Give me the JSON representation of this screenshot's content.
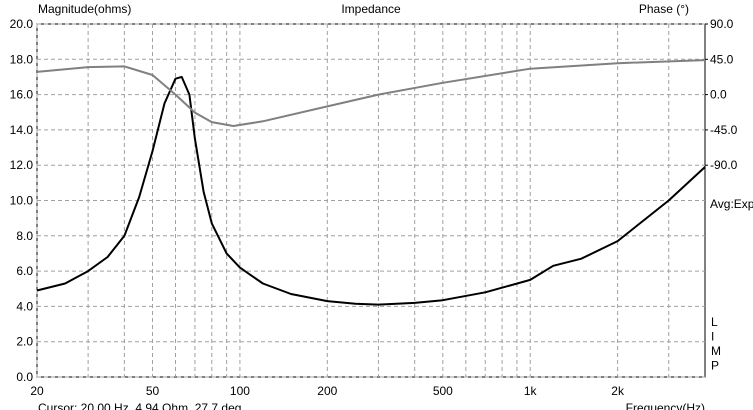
{
  "chart_data": {
    "type": "line",
    "title": "Impedance",
    "y_label": "Magnitude(ohms)",
    "y2_label": "Phase (°)",
    "side_note": "Avg:Exp",
    "side_letters": [
      "L",
      "I",
      "M",
      "P"
    ],
    "footer_left": "Cursor: 20.00 Hz, 4.94 Ohm, 27.7 deg",
    "footer_right": "Frequency(Hz)",
    "xscale": "log",
    "xlim": [
      20,
      4000
    ],
    "xticks": [
      20,
      50,
      100,
      200,
      500,
      {
        "value": 1000,
        "label": "1k"
      },
      {
        "value": 2000,
        "label": "2k"
      }
    ],
    "ylim": [
      0,
      20
    ],
    "yticks": [
      {
        "value": 0,
        "label": "0.0"
      },
      {
        "value": 2,
        "label": "2.0"
      },
      {
        "value": 4,
        "label": "4.0"
      },
      {
        "value": 6,
        "label": "6.0"
      },
      {
        "value": 8,
        "label": "8.0"
      },
      {
        "value": 10,
        "label": "10.0"
      },
      {
        "value": 12,
        "label": "12.0"
      },
      {
        "value": 14,
        "label": "14.0"
      },
      {
        "value": 16,
        "label": "16.0"
      },
      {
        "value": 18,
        "label": "18.0"
      },
      {
        "value": 20,
        "label": "20.0"
      }
    ],
    "y2lim": [
      -360,
      90
    ],
    "y2ticks": [
      {
        "value": 90,
        "label": "90.0"
      },
      {
        "value": 45,
        "label": "45.0"
      },
      {
        "value": 0,
        "label": "0.0"
      },
      {
        "value": -45,
        "label": "-45.0"
      },
      {
        "value": -90,
        "label": "-90.0"
      }
    ],
    "grid": true,
    "series": [
      {
        "name": "Magnitude",
        "color": "#000000",
        "axis": "y",
        "x": [
          20,
          25,
          30,
          35,
          40,
          45,
          50,
          55,
          60,
          63,
          67,
          70,
          75,
          80,
          90,
          100,
          120,
          150,
          200,
          250,
          300,
          400,
          500,
          700,
          1000,
          1200,
          1500,
          2000,
          3000,
          4000
        ],
        "values": [
          4.9,
          5.3,
          6.0,
          6.8,
          8.0,
          10.2,
          12.8,
          15.5,
          16.9,
          17.0,
          16.0,
          13.5,
          10.5,
          8.7,
          7.0,
          6.2,
          5.3,
          4.7,
          4.3,
          4.15,
          4.1,
          4.2,
          4.35,
          4.8,
          5.5,
          6.3,
          6.7,
          7.7,
          10.0,
          11.9
        ]
      },
      {
        "name": "Phase",
        "color": "#808080",
        "axis": "y2",
        "x": [
          20,
          30,
          40,
          50,
          60,
          70,
          80,
          95,
          120,
          200,
          300,
          500,
          1000,
          2000,
          4000
        ],
        "values": [
          29,
          35,
          36,
          25,
          0,
          -23,
          -35,
          -40,
          -34,
          -15,
          0,
          15,
          33,
          40,
          44
        ]
      }
    ]
  }
}
